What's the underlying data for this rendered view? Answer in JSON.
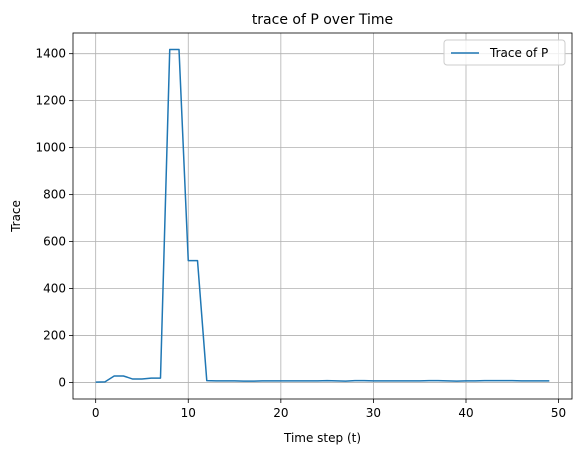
{
  "chart_data": {
    "type": "line",
    "title": "trace of P over Time",
    "xlabel": "Time step (t)",
    "ylabel": "Trace",
    "xlim": [
      -2.45,
      51.45
    ],
    "ylim": [
      -70,
      1488
    ],
    "x_ticks": [
      0,
      10,
      20,
      30,
      40,
      50
    ],
    "y_ticks": [
      0,
      200,
      400,
      600,
      800,
      1000,
      1200,
      1400
    ],
    "grid": true,
    "legend_position": "top-right",
    "series": [
      {
        "name": "Trace of P",
        "color": "#1f77b4",
        "x": [
          0,
          1,
          2,
          3,
          4,
          5,
          6,
          7,
          8,
          9,
          10,
          11,
          12,
          13,
          14,
          15,
          16,
          17,
          18,
          19,
          20,
          21,
          22,
          23,
          24,
          25,
          26,
          27,
          28,
          29,
          30,
          31,
          32,
          33,
          34,
          35,
          36,
          37,
          38,
          39,
          40,
          41,
          42,
          43,
          44,
          45,
          46,
          47,
          48,
          49
        ],
        "y": [
          2,
          3,
          28,
          28,
          15,
          15,
          19,
          19,
          1418,
          1418,
          519,
          519,
          8,
          7,
          7,
          7,
          6,
          6,
          7,
          7,
          7,
          7,
          7,
          7,
          7,
          8,
          7,
          6,
          8,
          8,
          7,
          7,
          7,
          7,
          7,
          7,
          8,
          8,
          7,
          6,
          7,
          7,
          8,
          8,
          8,
          8,
          7,
          7,
          7,
          7
        ]
      }
    ]
  }
}
